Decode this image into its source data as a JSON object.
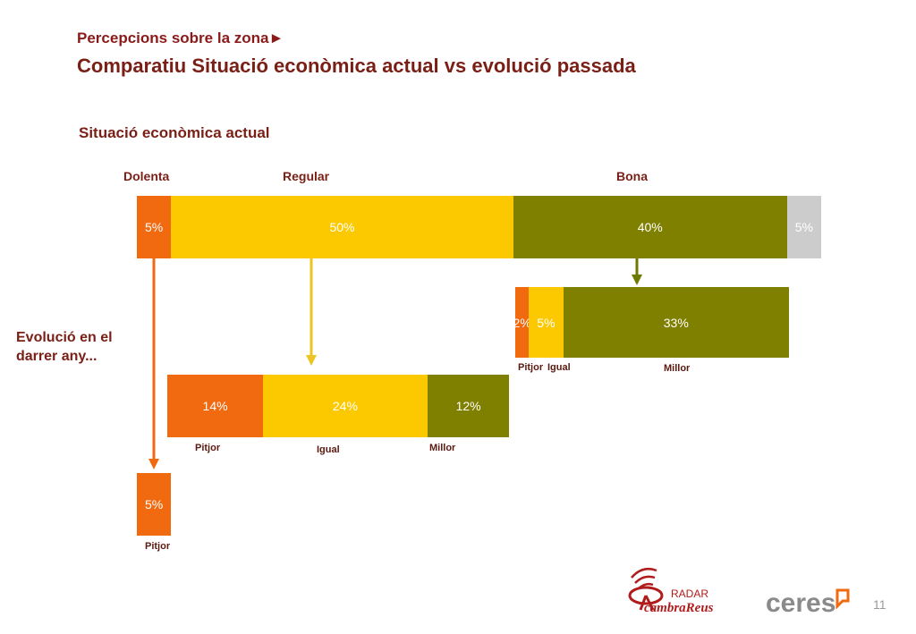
{
  "header": {
    "supertitle": "Percepcions sobre la zona►",
    "title": "Comparatiu Situació econòmica actual vs evolució passada"
  },
  "section_title": "Situació econòmica actual",
  "side_label": "Evolució en el darrer any...",
  "page_number": "11",
  "colors": {
    "dolenta": "#f26a10",
    "regular": "#fcc900",
    "bona": "#7f7f00",
    "nsnc": "#cccccc",
    "title": "#7a1f16"
  },
  "chart_data": {
    "type": "bar",
    "main": {
      "categories": [
        "Dolenta",
        "Regular",
        "Bona"
      ],
      "segments": [
        {
          "category": "Dolenta",
          "value": 5,
          "label": "5%"
        },
        {
          "category": "Regular",
          "value": 50,
          "label": "50%"
        },
        {
          "category": "Bona",
          "value": 40,
          "label": "40%"
        },
        {
          "category": "",
          "value": 5,
          "label": "5%"
        }
      ]
    },
    "breakdowns": [
      {
        "from": "Dolenta",
        "segments": [
          {
            "category": "Pitjor",
            "value": 5,
            "label": "5%"
          }
        ]
      },
      {
        "from": "Regular",
        "segments": [
          {
            "category": "Pitjor",
            "value": 14,
            "label": "14%"
          },
          {
            "category": "Igual",
            "value": 24,
            "label": "24%"
          },
          {
            "category": "Millor",
            "value": 12,
            "label": "12%"
          }
        ]
      },
      {
        "from": "Bona",
        "segments": [
          {
            "category": "Pitjor",
            "value": 2,
            "label": "2%"
          },
          {
            "category": "Igual",
            "value": 5,
            "label": "5%"
          },
          {
            "category": "Millor",
            "value": 33,
            "label": "33%"
          }
        ]
      }
    ]
  },
  "logos": {
    "radar_top": "RADAR",
    "radar_bottom": "cambraReus",
    "ceres": "ceres"
  }
}
